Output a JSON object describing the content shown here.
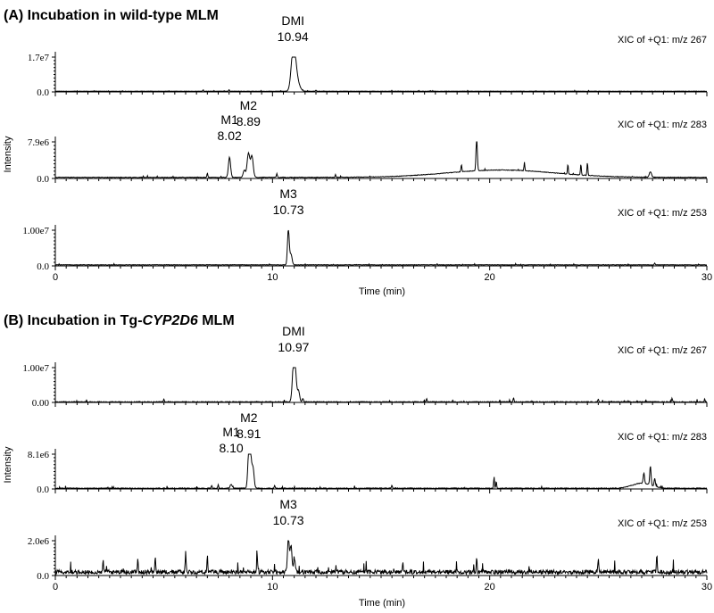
{
  "panel_a": {
    "title": "(A) Incubation in wild-type MLM",
    "ylabel": "Intensity",
    "xlabel": "Time (min)"
  },
  "panel_b": {
    "title_prefix": "(B) Incubation in Tg-",
    "title_gene": "CYP2D6",
    "title_suffix": " MLM",
    "ylabel": "Intensity",
    "xlabel": "Time (min)"
  },
  "chart_data": [
    {
      "type": "line",
      "panel": "A",
      "subplot": 1,
      "label": "XIC of +Q1: m/z 267",
      "ylim": [
        0,
        17000000
      ],
      "yticks": [
        "0.0",
        "1.7e7"
      ],
      "xlim": [
        0,
        30
      ],
      "xticks": [],
      "annotations": [
        {
          "name": "DMI",
          "x": 10.94,
          "text": "10.94"
        }
      ],
      "baseline": 0.02,
      "noise": 0.004,
      "hump": null,
      "peaks": [
        {
          "x": 10.94,
          "y": 1.0,
          "w": 0.09
        },
        {
          "x": 11.05,
          "y": 0.55,
          "w": 0.09
        },
        {
          "x": 11.2,
          "y": 0.15,
          "w": 0.1
        },
        {
          "x": 8.0,
          "y": 0.04,
          "w": 0.02
        },
        {
          "x": 6.8,
          "y": 0.03,
          "w": 0.02
        },
        {
          "x": 12.0,
          "y": 0.03,
          "w": 0.02
        }
      ]
    },
    {
      "type": "line",
      "panel": "A",
      "subplot": 2,
      "label": "XIC of +Q1: m/z 283",
      "ylim": [
        0,
        7900000
      ],
      "yticks": [
        "0.0",
        "7.9e6"
      ],
      "xlim": [
        0,
        30
      ],
      "xticks": [],
      "annotations": [
        {
          "name": "M1",
          "x": 8.02,
          "text": "8.02"
        },
        {
          "name": "M2",
          "x": 8.89,
          "text": "8.89"
        }
      ],
      "baseline": 0.03,
      "noise": 0.008,
      "hump": {
        "center": 20.5,
        "width": 3.5,
        "height": 0.2
      },
      "peaks": [
        {
          "x": 8.02,
          "y": 0.55,
          "w": 0.05
        },
        {
          "x": 8.89,
          "y": 0.65,
          "w": 0.06
        },
        {
          "x": 9.05,
          "y": 0.58,
          "w": 0.06
        },
        {
          "x": 8.7,
          "y": 0.2,
          "w": 0.05
        },
        {
          "x": 7.0,
          "y": 0.12,
          "w": 0.02
        },
        {
          "x": 10.2,
          "y": 0.1,
          "w": 0.02
        },
        {
          "x": 12.9,
          "y": 0.08,
          "w": 0.02
        },
        {
          "x": 19.4,
          "y": 0.92,
          "w": 0.03
        },
        {
          "x": 18.7,
          "y": 0.2,
          "w": 0.02
        },
        {
          "x": 21.6,
          "y": 0.2,
          "w": 0.02
        },
        {
          "x": 23.6,
          "y": 0.25,
          "w": 0.02
        },
        {
          "x": 24.2,
          "y": 0.3,
          "w": 0.02
        },
        {
          "x": 24.5,
          "y": 0.35,
          "w": 0.02
        },
        {
          "x": 27.4,
          "y": 0.15,
          "w": 0.05
        }
      ]
    },
    {
      "type": "line",
      "panel": "A",
      "subplot": 3,
      "label": "XIC of +Q1: m/z 253",
      "ylim": [
        0,
        10000000
      ],
      "yticks": [
        "0.0",
        "1.00e7"
      ],
      "xlim": [
        0,
        30
      ],
      "xticks": [
        "0",
        "10",
        "20",
        "30"
      ],
      "annotations": [
        {
          "name": "M3",
          "x": 10.73,
          "text": "10.73"
        }
      ],
      "baseline": 0.03,
      "noise": 0.006,
      "hump": null,
      "peaks": [
        {
          "x": 10.73,
          "y": 1.0,
          "w": 0.04
        },
        {
          "x": 10.85,
          "y": 0.3,
          "w": 0.05
        },
        {
          "x": 27.6,
          "y": 0.05,
          "w": 0.02
        }
      ]
    },
    {
      "type": "line",
      "panel": "B",
      "subplot": 1,
      "label": "XIC of +Q1: m/z 267",
      "ylim": [
        0,
        10000000
      ],
      "yticks": [
        "0.00",
        "1.00e7"
      ],
      "xlim": [
        0,
        30
      ],
      "xticks": [],
      "annotations": [
        {
          "name": "DMI",
          "x": 10.97,
          "text": "10.97"
        }
      ],
      "baseline": 0.015,
      "noise": 0.012,
      "hump": null,
      "peaks": [
        {
          "x": 10.97,
          "y": 1.0,
          "w": 0.06
        },
        {
          "x": 11.05,
          "y": 0.7,
          "w": 0.06
        },
        {
          "x": 11.2,
          "y": 0.3,
          "w": 0.05
        },
        {
          "x": 11.4,
          "y": 0.1,
          "w": 0.03
        },
        {
          "x": 5.0,
          "y": 0.08,
          "w": 0.02
        },
        {
          "x": 17.1,
          "y": 0.1,
          "w": 0.02
        },
        {
          "x": 21.1,
          "y": 0.12,
          "w": 0.02
        },
        {
          "x": 25.0,
          "y": 0.08,
          "w": 0.02
        },
        {
          "x": 28.4,
          "y": 0.1,
          "w": 0.02
        },
        {
          "x": 29.9,
          "y": 0.08,
          "w": 0.02
        }
      ]
    },
    {
      "type": "line",
      "panel": "B",
      "subplot": 2,
      "label": "XIC of +Q1: m/z 283",
      "ylim": [
        0,
        8100000
      ],
      "yticks": [
        "0.0",
        "8.1e6"
      ],
      "xlim": [
        0,
        30
      ],
      "xticks": [],
      "annotations": [
        {
          "name": "M1",
          "x": 8.1,
          "text": "8.10"
        },
        {
          "name": "M2",
          "x": 8.91,
          "text": "8.91"
        }
      ],
      "baseline": 0.02,
      "noise": 0.012,
      "hump": {
        "center": 27.0,
        "width": 0.6,
        "height": 0.15
      },
      "peaks": [
        {
          "x": 8.1,
          "y": 0.1,
          "w": 0.05
        },
        {
          "x": 8.91,
          "y": 0.95,
          "w": 0.05
        },
        {
          "x": 8.98,
          "y": 0.9,
          "w": 0.05
        },
        {
          "x": 9.1,
          "y": 0.6,
          "w": 0.05
        },
        {
          "x": 7.2,
          "y": 0.08,
          "w": 0.02
        },
        {
          "x": 7.5,
          "y": 0.1,
          "w": 0.02
        },
        {
          "x": 10.1,
          "y": 0.08,
          "w": 0.02
        },
        {
          "x": 15.5,
          "y": 0.08,
          "w": 0.02
        },
        {
          "x": 20.2,
          "y": 0.28,
          "w": 0.02
        },
        {
          "x": 20.3,
          "y": 0.2,
          "w": 0.02
        },
        {
          "x": 27.4,
          "y": 0.55,
          "w": 0.03
        },
        {
          "x": 27.1,
          "y": 0.3,
          "w": 0.03
        },
        {
          "x": 27.6,
          "y": 0.22,
          "w": 0.03
        }
      ]
    },
    {
      "type": "line",
      "panel": "B",
      "subplot": 3,
      "label": "XIC of +Q1: m/z 253",
      "ylim": [
        0,
        2000000
      ],
      "yticks": [
        "0.0",
        "2.0e6"
      ],
      "xlim": [
        0,
        30
      ],
      "xticks": [
        "0",
        "10",
        "20",
        "30"
      ],
      "annotations": [
        {
          "name": "M3",
          "x": 10.73,
          "text": "10.73"
        }
      ],
      "baseline": 0.1,
      "noise": 0.06,
      "hump": null,
      "peaks": [
        {
          "x": 10.73,
          "y": 1.0,
          "w": 0.04
        },
        {
          "x": 10.85,
          "y": 0.75,
          "w": 0.04
        },
        {
          "x": 11.0,
          "y": 0.4,
          "w": 0.04
        },
        {
          "x": 6.0,
          "y": 0.6,
          "w": 0.02
        },
        {
          "x": 7.0,
          "y": 0.45,
          "w": 0.02
        },
        {
          "x": 4.6,
          "y": 0.4,
          "w": 0.02
        },
        {
          "x": 3.8,
          "y": 0.35,
          "w": 0.02
        },
        {
          "x": 9.3,
          "y": 0.4,
          "w": 0.02
        },
        {
          "x": 19.4,
          "y": 0.4,
          "w": 0.02
        },
        {
          "x": 25.0,
          "y": 0.4,
          "w": 0.02
        },
        {
          "x": 27.7,
          "y": 0.5,
          "w": 0.02
        },
        {
          "x": 2.2,
          "y": 0.3,
          "w": 0.02
        },
        {
          "x": 16.0,
          "y": 0.3,
          "w": 0.02
        }
      ]
    }
  ]
}
